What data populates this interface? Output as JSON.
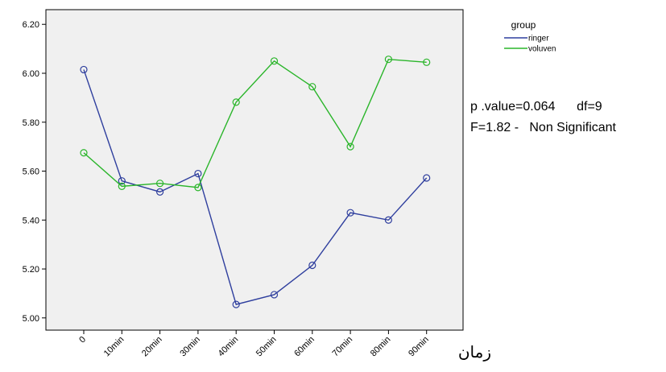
{
  "chart_data": {
    "type": "line",
    "title": "",
    "xlabel": "زمان",
    "ylabel": "",
    "categories": [
      "0",
      "10min",
      "20min",
      "30min",
      "40min",
      "50min",
      "60min",
      "70min",
      "80min",
      "90min"
    ],
    "ylim": [
      4.95,
      6.26
    ],
    "yticks": [
      5.0,
      5.2,
      5.4,
      5.6,
      5.8,
      6.0,
      6.2
    ],
    "ytick_labels": [
      "5.00",
      "5.20",
      "5.40",
      "5.60",
      "5.80",
      "6.00",
      "6.20"
    ],
    "grid": false,
    "legend": {
      "title": "group",
      "placement": "top-right"
    },
    "series": [
      {
        "name": "ringer",
        "color": "#2f3f9e",
        "values": [
          6.015,
          5.56,
          5.515,
          5.59,
          5.055,
          5.095,
          5.215,
          5.43,
          5.4,
          5.572
        ]
      },
      {
        "name": "voluven",
        "color": "#2ab52a",
        "values": [
          5.675,
          5.538,
          5.55,
          5.533,
          5.882,
          6.05,
          5.945,
          5.7,
          6.057,
          6.045
        ]
      }
    ],
    "annotations": [
      "p .value=0.064      df=9",
      "F=1.82 -   Non Significant"
    ],
    "plot_background": "#f0f0f0"
  }
}
